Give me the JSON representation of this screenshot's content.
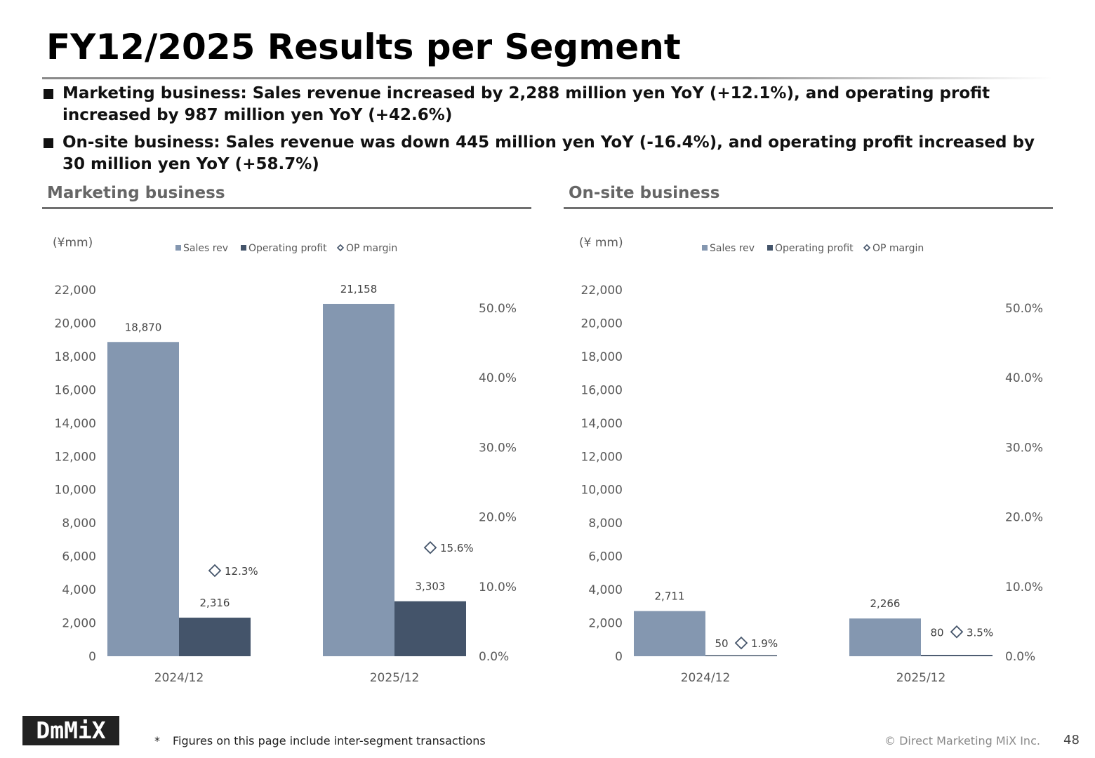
{
  "page": {
    "title": "FY12/2025 Results per Segment",
    "bullets": [
      "Marketing business: Sales revenue increased by 2,288 million yen YoY (+12.1%), and operating profit increased by 987 million yen YoY (+42.6%)",
      "On-site business: Sales revenue was down 445 million yen YoY (-16.4%), and operating profit increased by 30 million yen YoY (+58.7%)"
    ]
  },
  "sections": {
    "marketing_title": "Marketing business",
    "onsite_title": "On-site business"
  },
  "colors": {
    "sales_rev": "#8497B0",
    "operating_profit": "#44546A",
    "op_margin": "#44546A"
  },
  "chart_data": [
    {
      "type": "bar",
      "unit_label": "(¥mm)",
      "categories": [
        "2024/12",
        "2025/12"
      ],
      "series": [
        {
          "name": "Sales rev",
          "values": [
            18870,
            21158
          ]
        },
        {
          "name": "Operating profit",
          "values": [
            2316,
            3303
          ]
        },
        {
          "name": "OP margin",
          "values": [
            12.3,
            15.6
          ],
          "axis": "secondary",
          "marker": "diamond"
        }
      ],
      "value_labels": {
        "sales": [
          "18,870",
          "21,158"
        ],
        "profit": [
          "2,316",
          "3,303"
        ],
        "margin": [
          "12.3%",
          "15.6%"
        ]
      },
      "ylim": [
        0,
        22000
      ],
      "y_ticks": [
        "0",
        "2,000",
        "4,000",
        "6,000",
        "8,000",
        "10,000",
        "12,000",
        "14,000",
        "16,000",
        "18,000",
        "20,000",
        "22,000"
      ],
      "y2lim": [
        0,
        50
      ],
      "y2_ticks": [
        "0.0%",
        "10.0%",
        "20.0%",
        "30.0%",
        "40.0%",
        "50.0%"
      ],
      "legend": {
        "placement": "top",
        "items": [
          "Sales rev",
          "Operating profit",
          "OP margin"
        ]
      },
      "grid": false
    },
    {
      "type": "bar",
      "unit_label": "(¥ mm)",
      "categories": [
        "2024/12",
        "2025/12"
      ],
      "series": [
        {
          "name": "Sales rev",
          "values": [
            2711,
            2266
          ]
        },
        {
          "name": "Operating profit",
          "values": [
            50,
            80
          ]
        },
        {
          "name": "OP margin",
          "values": [
            1.9,
            3.5
          ],
          "axis": "secondary",
          "marker": "diamond"
        }
      ],
      "value_labels": {
        "sales": [
          "2,711",
          "2,266"
        ],
        "profit": [
          "50",
          "80"
        ],
        "margin": [
          "1.9%",
          "3.5%"
        ]
      },
      "ylim": [
        0,
        22000
      ],
      "y_ticks": [
        "0",
        "2,000",
        "4,000",
        "6,000",
        "8,000",
        "10,000",
        "12,000",
        "14,000",
        "16,000",
        "18,000",
        "20,000",
        "22,000"
      ],
      "y2lim": [
        0,
        50
      ],
      "y2_ticks": [
        "0.0%",
        "10.0%",
        "20.0%",
        "30.0%",
        "40.0%",
        "50.0%"
      ],
      "legend": {
        "placement": "top",
        "items": [
          "Sales rev",
          "Operating profit",
          "OP margin"
        ]
      },
      "grid": false
    }
  ],
  "footer": {
    "logo_text": "DmMiX",
    "footnote_mark": "*",
    "footnote": "Figures on this page include inter-segment transactions",
    "copyright": "© Direct Marketing MiX Inc.",
    "page_number": "48"
  }
}
